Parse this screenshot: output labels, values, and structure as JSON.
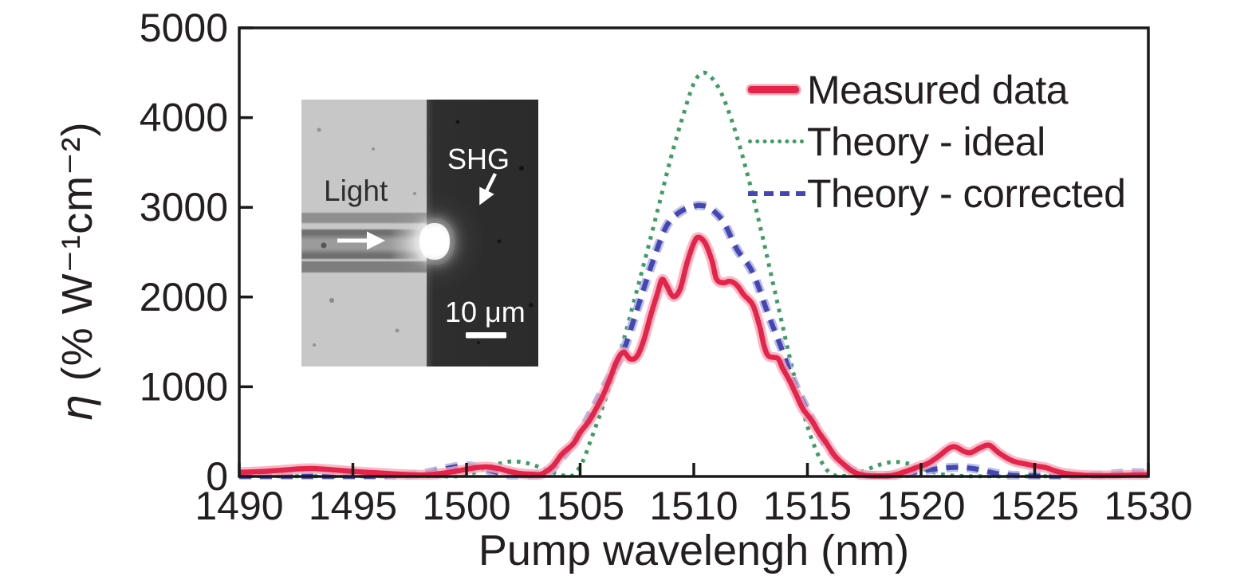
{
  "figure": {
    "background": "#ffffff",
    "text_color": "#231f20",
    "frame_color": "#1a1a1a"
  },
  "axes": {
    "x": {
      "title": "Pump wavelengh (nm)",
      "min": 1490,
      "max": 1530,
      "ticks": [
        1490,
        1495,
        1500,
        1505,
        1510,
        1515,
        1520,
        1525,
        1530
      ]
    },
    "y": {
      "title_symbol": "η",
      "title_rest": " (% W⁻¹cm⁻²)",
      "min": 0,
      "max": 5000,
      "ticks": [
        0,
        1000,
        2000,
        3000,
        4000,
        5000
      ]
    }
  },
  "legend": [
    {
      "label": "Measured data",
      "style": "solid",
      "color": "#e4244a",
      "halo": "#f5a8b6"
    },
    {
      "label": "Theory - ideal",
      "style": "dotted",
      "color": "#3f9c66",
      "halo": null
    },
    {
      "label": "Theory - corrected",
      "style": "dashed",
      "color": "#4446b4",
      "halo": "#a9ace0"
    }
  ],
  "inset": {
    "light_label": "Light",
    "shg_label": "SHG",
    "scale_label": "10 μm",
    "light_arrow_icon": "arrow-right",
    "shg_arrow_icon": "arrow-down-left"
  },
  "chart_data": {
    "type": "line",
    "title": "",
    "xlabel": "Pump wavelengh (nm)",
    "ylabel": "η (% W⁻¹cm⁻²)",
    "xlim": [
      1490,
      1530
    ],
    "ylim": [
      0,
      5000
    ],
    "grid": false,
    "legend_position": "upper right inside",
    "series": [
      {
        "name": "Measured data",
        "style": "solid",
        "color": "#e4244a",
        "points": [
          [
            1490,
            45
          ],
          [
            1491,
            55
          ],
          [
            1492,
            72
          ],
          [
            1492.7,
            85
          ],
          [
            1493.3,
            88
          ],
          [
            1494,
            76
          ],
          [
            1494.7,
            62
          ],
          [
            1495.4,
            50
          ],
          [
            1496.1,
            40
          ],
          [
            1496.8,
            28
          ],
          [
            1497.5,
            20
          ],
          [
            1498.1,
            17
          ],
          [
            1498.7,
            28
          ],
          [
            1499.3,
            48
          ],
          [
            1499.9,
            75
          ],
          [
            1500.4,
            98
          ],
          [
            1500.9,
            107
          ],
          [
            1501.4,
            88
          ],
          [
            1501.9,
            55
          ],
          [
            1502.4,
            32
          ],
          [
            1502.9,
            25
          ],
          [
            1503.3,
            27
          ],
          [
            1503.8,
            115
          ],
          [
            1504.2,
            250
          ],
          [
            1504.7,
            365
          ],
          [
            1505.0,
            490
          ],
          [
            1505.4,
            620
          ],
          [
            1505.7,
            755
          ],
          [
            1506.0,
            900
          ],
          [
            1506.3,
            1080
          ],
          [
            1506.6,
            1280
          ],
          [
            1506.9,
            1385
          ],
          [
            1507.2,
            1310
          ],
          [
            1507.5,
            1340
          ],
          [
            1507.8,
            1520
          ],
          [
            1508.1,
            1790
          ],
          [
            1508.4,
            2040
          ],
          [
            1508.6,
            2195
          ],
          [
            1508.8,
            2130
          ],
          [
            1509.1,
            2005
          ],
          [
            1509.4,
            2090
          ],
          [
            1509.7,
            2380
          ],
          [
            1510.0,
            2600
          ],
          [
            1510.2,
            2665
          ],
          [
            1510.5,
            2600
          ],
          [
            1510.8,
            2405
          ],
          [
            1511.0,
            2200
          ],
          [
            1511.3,
            2160
          ],
          [
            1511.6,
            2175
          ],
          [
            1511.9,
            2130
          ],
          [
            1512.2,
            2025
          ],
          [
            1512.6,
            1910
          ],
          [
            1512.9,
            1670
          ],
          [
            1513.1,
            1450
          ],
          [
            1513.3,
            1340
          ],
          [
            1513.7,
            1315
          ],
          [
            1513.9,
            1210
          ],
          [
            1514.2,
            1075
          ],
          [
            1514.5,
            915
          ],
          [
            1514.8,
            755
          ],
          [
            1515.2,
            620
          ],
          [
            1515.5,
            490
          ],
          [
            1515.8,
            385
          ],
          [
            1516.2,
            230
          ],
          [
            1516.6,
            135
          ],
          [
            1517.0,
            55
          ],
          [
            1517.5,
            12
          ],
          [
            1518.1,
            5
          ],
          [
            1518.7,
            10
          ],
          [
            1519.2,
            45
          ],
          [
            1519.8,
            100
          ],
          [
            1520.3,
            145
          ],
          [
            1520.8,
            230
          ],
          [
            1521.2,
            310
          ],
          [
            1521.5,
            330
          ],
          [
            1521.9,
            278
          ],
          [
            1522.2,
            267
          ],
          [
            1522.6,
            320
          ],
          [
            1523.0,
            348
          ],
          [
            1523.4,
            267
          ],
          [
            1523.9,
            188
          ],
          [
            1524.2,
            160
          ],
          [
            1524.7,
            133
          ],
          [
            1525.1,
            115
          ],
          [
            1525.5,
            98
          ],
          [
            1525.9,
            62
          ],
          [
            1526.3,
            36
          ],
          [
            1526.9,
            18
          ],
          [
            1527.6,
            10
          ],
          [
            1528.5,
            10
          ],
          [
            1529.3,
            15
          ],
          [
            1530,
            18
          ]
        ]
      },
      {
        "name": "Theory - ideal",
        "style": "dotted",
        "color": "#3f9c66",
        "points": [
          [
            1490,
            2
          ],
          [
            1494,
            2
          ],
          [
            1498,
            2
          ],
          [
            1499.6,
            3
          ],
          [
            1500.2,
            30
          ],
          [
            1500.8,
            90
          ],
          [
            1501.4,
            140
          ],
          [
            1502.0,
            168
          ],
          [
            1502.6,
            152
          ],
          [
            1503.2,
            105
          ],
          [
            1503.8,
            45
          ],
          [
            1504.3,
            10
          ],
          [
            1504.7,
            18
          ],
          [
            1505.1,
            160
          ],
          [
            1505.5,
            430
          ],
          [
            1506.0,
            780
          ],
          [
            1506.5,
            1160
          ],
          [
            1507.0,
            1600
          ],
          [
            1507.5,
            2080
          ],
          [
            1508.0,
            2560
          ],
          [
            1508.5,
            3060
          ],
          [
            1509.0,
            3560
          ],
          [
            1509.5,
            4000
          ],
          [
            1510.0,
            4380
          ],
          [
            1510.4,
            4500
          ],
          [
            1510.8,
            4440
          ],
          [
            1511.2,
            4280
          ],
          [
            1511.6,
            4020
          ],
          [
            1512.0,
            3700
          ],
          [
            1512.5,
            3230
          ],
          [
            1513.0,
            2700
          ],
          [
            1513.4,
            2250
          ],
          [
            1513.8,
            1800
          ],
          [
            1514.2,
            1350
          ],
          [
            1514.6,
            930
          ],
          [
            1515.0,
            560
          ],
          [
            1515.4,
            280
          ],
          [
            1515.8,
            90
          ],
          [
            1516.2,
            12
          ],
          [
            1516.7,
            8
          ],
          [
            1517.2,
            35
          ],
          [
            1517.8,
            95
          ],
          [
            1518.3,
            140
          ],
          [
            1518.8,
            162
          ],
          [
            1519.3,
            150
          ],
          [
            1519.8,
            110
          ],
          [
            1520.4,
            58
          ],
          [
            1521.0,
            20
          ],
          [
            1521.7,
            5
          ],
          [
            1523,
            2
          ],
          [
            1526,
            2
          ],
          [
            1530,
            2
          ]
        ]
      },
      {
        "name": "Theory - corrected",
        "style": "dashed",
        "color": "#4446b4",
        "points": [
          [
            1490,
            2
          ],
          [
            1493,
            2
          ],
          [
            1496,
            2
          ],
          [
            1497.1,
            5
          ],
          [
            1497.7,
            20
          ],
          [
            1498.3,
            42
          ],
          [
            1499.0,
            82
          ],
          [
            1499.6,
            112
          ],
          [
            1500.1,
            118
          ],
          [
            1500.6,
            95
          ],
          [
            1501.1,
            60
          ],
          [
            1501.7,
            25
          ],
          [
            1502.2,
            10
          ],
          [
            1502.8,
            8
          ],
          [
            1503.3,
            28
          ],
          [
            1503.7,
            70
          ],
          [
            1504.4,
            275
          ],
          [
            1505.0,
            490
          ],
          [
            1505.6,
            760
          ],
          [
            1506.2,
            1060
          ],
          [
            1506.9,
            1400
          ],
          [
            1507.5,
            1860
          ],
          [
            1508.2,
            2400
          ],
          [
            1508.8,
            2790
          ],
          [
            1509.4,
            2950
          ],
          [
            1510.0,
            3010
          ],
          [
            1510.3,
            3020
          ],
          [
            1510.7,
            2990
          ],
          [
            1511.3,
            2840
          ],
          [
            1511.9,
            2530
          ],
          [
            1512.6,
            2270
          ],
          [
            1513.3,
            1790
          ],
          [
            1513.9,
            1400
          ],
          [
            1514.4,
            1050
          ],
          [
            1515.2,
            630
          ],
          [
            1515.7,
            400
          ],
          [
            1516.2,
            230
          ],
          [
            1516.8,
            95
          ],
          [
            1517.4,
            28
          ],
          [
            1518.0,
            8
          ],
          [
            1519.0,
            18
          ],
          [
            1520.0,
            60
          ],
          [
            1520.8,
            88
          ],
          [
            1521.6,
            102
          ],
          [
            1522.3,
            88
          ],
          [
            1523.0,
            50
          ],
          [
            1523.6,
            22
          ],
          [
            1524.5,
            8
          ],
          [
            1526.0,
            3
          ],
          [
            1527.5,
            8
          ],
          [
            1528.5,
            28
          ],
          [
            1529.2,
            42
          ],
          [
            1530,
            38
          ]
        ]
      }
    ]
  }
}
